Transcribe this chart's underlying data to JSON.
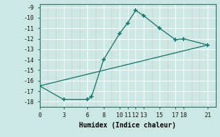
{
  "xlabel": "Humidex (Indice chaleur)",
  "x_upper": [
    0,
    3,
    6,
    6.5,
    8,
    10,
    11,
    12,
    13,
    15,
    17,
    18,
    21
  ],
  "y_upper": [
    -16.5,
    -17.8,
    -17.8,
    -17.5,
    -14.0,
    -11.5,
    -10.5,
    -9.3,
    -9.8,
    -11.0,
    -12.1,
    -12.0,
    -12.6
  ],
  "line_color": "#1a7a6e",
  "bg_color": "#cce8e4",
  "grid_color_main": "#ffffff",
  "grid_color_minor": "#e8c8c8",
  "ylim": [
    -18.5,
    -8.7
  ],
  "xlim": [
    0,
    22
  ],
  "yticks": [
    -9,
    -10,
    -11,
    -12,
    -13,
    -14,
    -15,
    -16,
    -17,
    -18
  ],
  "xticks": [
    0,
    3,
    6,
    8,
    10,
    11,
    12,
    13,
    15,
    17,
    18,
    21
  ]
}
